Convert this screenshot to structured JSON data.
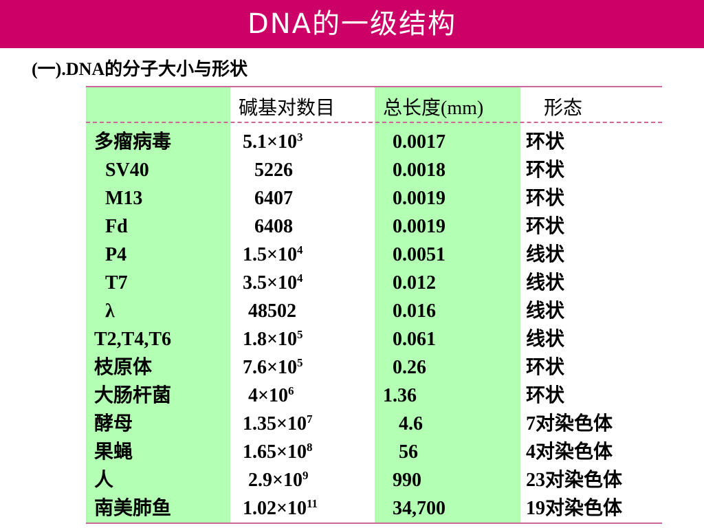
{
  "slide": {
    "title": "DNA的一级结构",
    "subtitle": "(一).DNA的分子大小与形状"
  },
  "colors": {
    "title_bar": "#cc0066",
    "col_fill": "#b3ffb3",
    "rule": "#cc6699"
  },
  "table": {
    "headers": [
      "",
      "碱基对数目",
      "总长度(mm)",
      "形态"
    ],
    "rows": [
      {
        "name": "多瘤病毒",
        "bp": "5.1×10",
        "bp_exp": "3",
        "len": "0.0017",
        "shape": "环状"
      },
      {
        "name": "SV40",
        "bp": "5226",
        "bp_exp": "",
        "len": "0.0018",
        "shape": "环状"
      },
      {
        "name": "M13",
        "bp": "6407",
        "bp_exp": "",
        "len": "0.0019",
        "shape": "环状"
      },
      {
        "name": "Fd",
        "bp": "6408",
        "bp_exp": "",
        "len": "0.0019",
        "shape": "环状"
      },
      {
        "name": "P4",
        "bp": "1.5×10",
        "bp_exp": "4",
        "len": "0.0051",
        "shape": "线状"
      },
      {
        "name": "T7",
        "bp": "3.5×10",
        "bp_exp": "4",
        "len": "0.012",
        "shape": "线状"
      },
      {
        "name": "λ",
        "bp": "48502",
        "bp_exp": "",
        "len": "0.016",
        "shape": "线状"
      },
      {
        "name": "T2,T4,T6",
        "bp": "1.8×10",
        "bp_exp": "5",
        "len": "0.061",
        "shape": "线状"
      },
      {
        "name": "枝原体",
        "bp": "7.6×10",
        "bp_exp": "5",
        "len": "0.26",
        "shape": "环状"
      },
      {
        "name": "大肠杆菌",
        "bp": "4×10",
        "bp_exp": "6",
        "len": "1.36",
        "shape": "环状"
      },
      {
        "name": "酵母",
        "bp": "1.35×10",
        "bp_exp": "7",
        "len": "4.6",
        "shape": "7对染色体"
      },
      {
        "name": "果蝇",
        "bp": "1.65×10",
        "bp_exp": "8",
        "len": "56",
        "shape": "4对染色体"
      },
      {
        "name": "人",
        "bp": "2.9×10",
        "bp_exp": "9",
        "len": "990",
        "shape": "23对染色体"
      },
      {
        "name": "南美肺鱼",
        "bp": "1.02×10",
        "bp_exp": "11",
        "len": "34,700",
        "shape": "19对染色体"
      }
    ]
  }
}
